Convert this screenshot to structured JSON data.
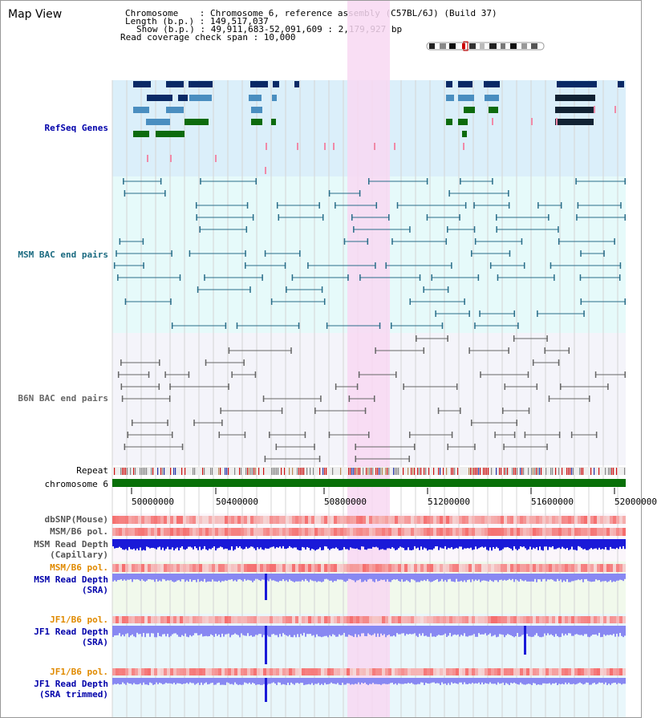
{
  "page_title": "Map View",
  "header": {
    "chromosome_line": "Chromosome    : Chromosome 6, reference assembly (C57BL/6J) (Build 37)",
    "length_line": "Length (b.p.) : 149,517,037",
    "show_line": "Show (b.p.) : 49,911,683-52,091,609 : 2,179,927 bp",
    "coverage_line": "Read coverage check span : 10,000"
  },
  "tracks": {
    "refseq": "RefSeq Genes",
    "msm_bac": "MSM BAC end pairs",
    "b6n_bac": "B6N BAC end pairs",
    "repeat": "Repeat",
    "chromosome": "chromosome 6",
    "dbsnp": "dbSNP(Mouse)",
    "msm_b6_pol": "MSM/B6 pol.",
    "msm_depth_cap_1": "MSM Read Depth",
    "msm_depth_cap_2": "(Capillary)",
    "msm_b6_pol_2": "MSM/B6 pol.",
    "msm_depth_sra_1": "MSM Read Depth",
    "msm_depth_sra_2": "(SRA)",
    "jf1_b6_pol": "JF1/B6 pol.",
    "jf1_depth_sra_1": "JF1 Read Depth",
    "jf1_depth_sra_2": "(SRA)",
    "jf1_b6_pol_2": "JF1/B6 pol.",
    "jf1_depth_trim_1": "JF1 Read Depth",
    "jf1_depth_trim_2": "(SRA trimmed)"
  },
  "axis": {
    "ticks": [
      "50000000",
      "50400000",
      "50800000",
      "51200000",
      "51600000",
      "52000000"
    ]
  },
  "colors": {
    "refseq_bg": "#dbeffa",
    "msm_bg": "#e6fafa",
    "b6n_bg": "#f4f4fa",
    "highlight": "#f8d8f2",
    "gene_dark": "#0a2a66",
    "gene_mid": "#4a8ec0",
    "gene_green": "#0d6b0d",
    "msm_line": "#2a6e8a",
    "b6n_line": "#666666",
    "chrom_bar": "#087008",
    "depth_dark": "#1a1ad8",
    "depth_light": "#8888f2",
    "label_blue": "#0000aa",
    "label_orange": "#e08a00",
    "label_teal": "#1a6a80"
  }
}
